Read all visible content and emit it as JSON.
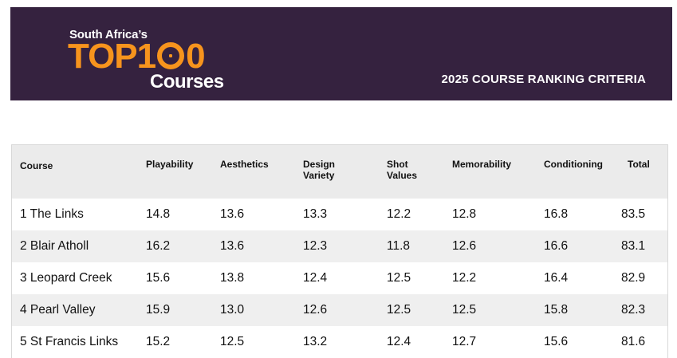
{
  "header": {
    "logo_top": "South Africa’s",
    "logo_main_left": "TOP1",
    "logo_main_right": "0",
    "logo_bottom": "Courses",
    "criteria_title": "2025 COURSE RANKING CRITERIA",
    "colors": {
      "banner": "#35223f",
      "accent": "#f7941d"
    }
  },
  "table": {
    "columns": [
      {
        "line1": "Course",
        "line2": ""
      },
      {
        "line1": "Playability",
        "line2": ""
      },
      {
        "line1": "Aesthetics",
        "line2": ""
      },
      {
        "line1": "Design",
        "line2": "Variety"
      },
      {
        "line1": "Shot",
        "line2": "Values"
      },
      {
        "line1": "Memorability",
        "line2": ""
      },
      {
        "line1": "Conditioning",
        "line2": ""
      },
      {
        "line1": "Total",
        "line2": ""
      }
    ],
    "rows": [
      [
        "1 The Links",
        "14.8",
        "13.6",
        "13.3",
        "12.2",
        "12.8",
        "16.8",
        "83.5"
      ],
      [
        "2 Blair Atholl",
        "16.2",
        "13.6",
        "12.3",
        "11.8",
        "12.6",
        "16.6",
        "83.1"
      ],
      [
        "3 Leopard Creek",
        "15.6",
        "13.8",
        "12.4",
        "12.5",
        "12.2",
        "16.4",
        "82.9"
      ],
      [
        "4 Pearl Valley",
        "15.9",
        "13.0",
        "12.6",
        "12.5",
        "12.5",
        "15.8",
        "82.3"
      ],
      [
        "5 St Francis Links",
        "15.2",
        "12.5",
        "13.2",
        "12.4",
        "12.7",
        "15.6",
        "81.6"
      ]
    ]
  }
}
